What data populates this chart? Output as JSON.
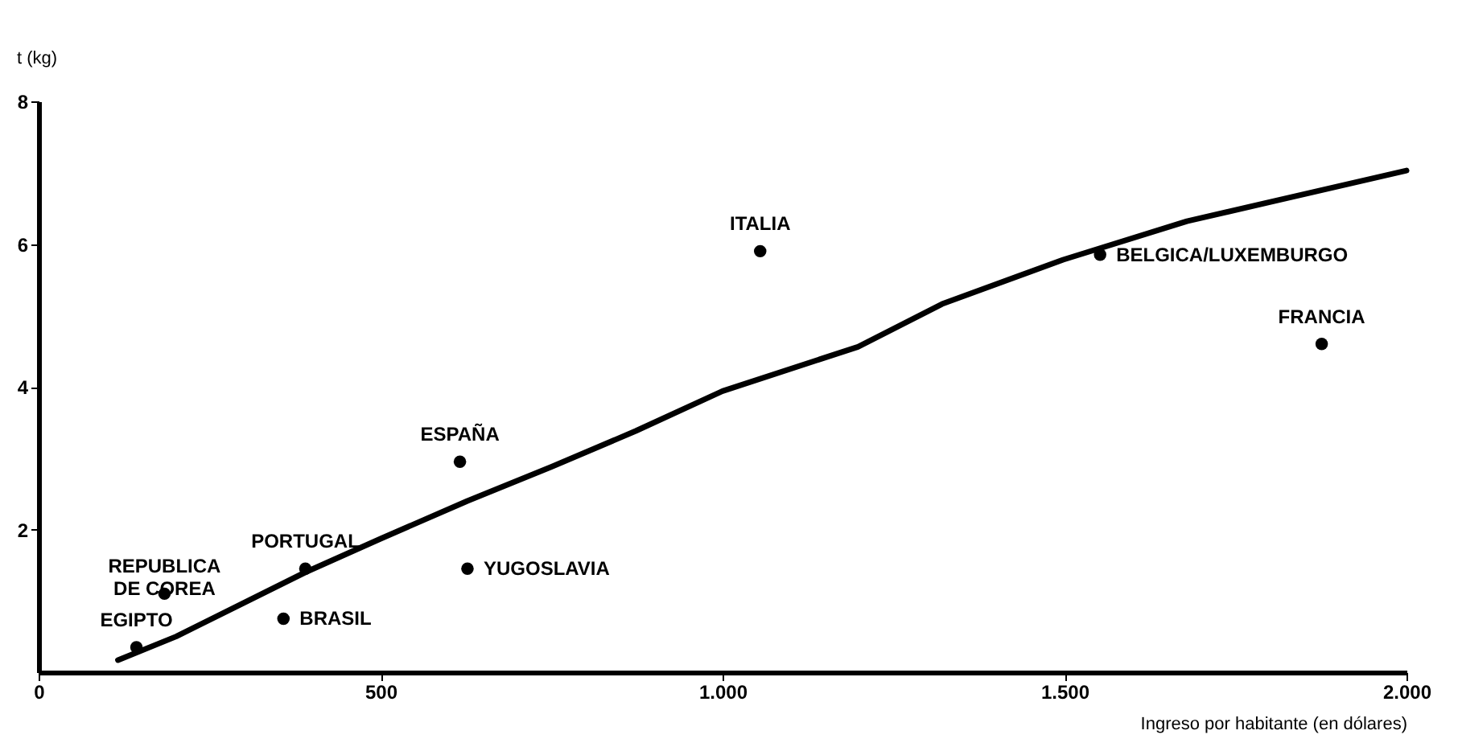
{
  "chart_data": {
    "type": "scatter",
    "ylabel": "t (kg)",
    "xlabel": "Ingreso por habitante (en dólares)",
    "xlim": [
      0,
      2000
    ],
    "xticks": [
      0,
      500,
      {
        "value": 1000,
        "label": "1.000"
      },
      {
        "value": 1500,
        "label": "1.500"
      },
      {
        "value": 2000,
        "label": "2.000"
      }
    ],
    "ylim": [
      0,
      8
    ],
    "yticks": [
      2,
      4,
      6,
      8
    ],
    "grid": false,
    "series": [
      {
        "marker": "circle",
        "color": "#000000",
        "x": [
          1055,
          1552,
          1876,
          616,
          627,
          390,
          184,
          358,
          143
        ],
        "values": [
          5.9,
          5.85,
          4.6,
          2.95,
          1.45,
          1.45,
          1.1,
          0.75,
          0.35
        ]
      },
      {
        "type": "line",
        "color": "#000000",
        "x": [
          116,
          201,
          390,
          500,
          627,
          750,
          873,
          1000,
          1198,
          1321,
          1498,
          1679,
          2000
        ],
        "values": [
          0.17,
          0.5,
          1.4,
          1.87,
          2.4,
          2.88,
          3.38,
          3.94,
          4.56,
          5.16,
          5.78,
          6.32,
          7.03
        ]
      }
    ],
    "annotations": [
      {
        "text": "ITALIA",
        "x": 1055,
        "y": 5.9
      },
      {
        "text": "BELGICA/LUXEMBURGO",
        "x": 1552,
        "y": 5.85
      },
      {
        "text": "FRANCIA",
        "x": 1876,
        "y": 4.6
      },
      {
        "text": "ESPAÑA",
        "x": 616,
        "y": 2.95
      },
      {
        "text": "YUGOSLAVIA",
        "x": 627,
        "y": 1.45
      },
      {
        "text": "PORTUGAL",
        "x": 390,
        "y": 1.45
      },
      {
        "text": "REPUBLICA\nDE COREA",
        "x": 184,
        "y": 1.1
      },
      {
        "text": "BRASIL",
        "x": 358,
        "y": 0.75
      },
      {
        "text": "EGIPTO",
        "x": 143,
        "y": 0.35
      }
    ]
  }
}
